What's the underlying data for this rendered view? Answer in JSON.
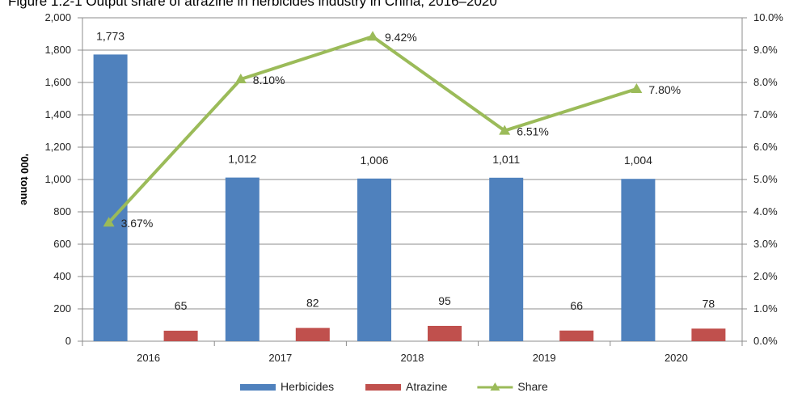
{
  "title": "Figure 1.2-1 Output share of atrazine in herbicides industry in China, 2016–2020",
  "chart_data": {
    "type": "bar",
    "categories": [
      "2016",
      "2017",
      "2018",
      "2019",
      "2020"
    ],
    "series": [
      {
        "name": "Herbicides",
        "type": "bar",
        "axis": "left",
        "color": "#4f81bd",
        "values": [
          1773,
          1012,
          1006,
          1011,
          1004
        ],
        "labels": [
          "1,773",
          "1,012",
          "1,006",
          "1,011",
          "1,004"
        ]
      },
      {
        "name": "Atrazine",
        "type": "bar",
        "axis": "left",
        "color": "#c0504d",
        "values": [
          65,
          82,
          95,
          66,
          78
        ],
        "labels": [
          "65",
          "82",
          "95",
          "66",
          "78"
        ]
      },
      {
        "name": "Share",
        "type": "line",
        "axis": "right",
        "color": "#9bbb59",
        "values": [
          3.67,
          8.1,
          9.42,
          6.51,
          7.8
        ],
        "labels": [
          "3.67%",
          "8.10%",
          "9.42%",
          "6.51%",
          "7.80%"
        ]
      }
    ],
    "ylabel": "'000 tonne",
    "ylim": [
      0,
      2000
    ],
    "yticks": [
      "0",
      "200",
      "400",
      "600",
      "800",
      "1,000",
      "1,200",
      "1,400",
      "1,600",
      "1,800",
      "2,000"
    ],
    "y2lim": [
      0,
      10
    ],
    "y2ticks": [
      "0.0%",
      "1.0%",
      "2.0%",
      "3.0%",
      "4.0%",
      "5.0%",
      "6.0%",
      "7.0%",
      "8.0%",
      "9.0%",
      "10.0%"
    ],
    "grid": true,
    "legend": "bottom"
  }
}
